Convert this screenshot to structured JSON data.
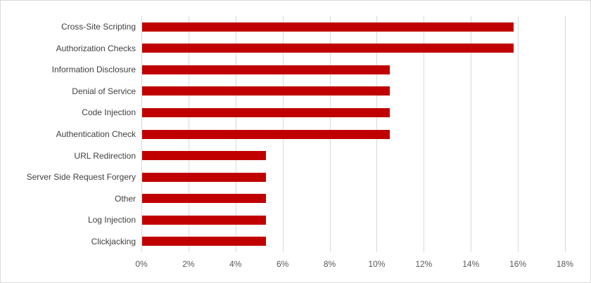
{
  "chart_data": {
    "type": "bar",
    "orientation": "horizontal",
    "title": "",
    "xlabel": "",
    "ylabel": "",
    "categories": [
      "Cross-Site Scripting",
      "Authorization Checks",
      "Information Disclosure",
      "Denial of Service",
      "Code Injection",
      "Authentication Check",
      "URL Redirection",
      "Server Side Request Forgery",
      "Other",
      "Log Injection",
      "Clickjacking"
    ],
    "values": [
      15.79,
      15.79,
      10.53,
      10.53,
      10.53,
      10.53,
      5.26,
      5.26,
      5.26,
      5.26,
      5.26
    ],
    "xlim": [
      0,
      18
    ],
    "x_tick_values": [
      0,
      2,
      4,
      6,
      8,
      10,
      12,
      14,
      16,
      18
    ],
    "x_tick_labels": [
      "0%",
      "2%",
      "4%",
      "6%",
      "8%",
      "10%",
      "12%",
      "14%",
      "16%",
      "18%"
    ],
    "grid": "vertical-only",
    "legend": "none"
  },
  "colors": {
    "bar": "#c00000",
    "gridline": "#d9d9d9",
    "frame_border": "#d9d9d9",
    "background": "#ffffff",
    "category_label": "#404040",
    "axis_label": "#595959"
  }
}
